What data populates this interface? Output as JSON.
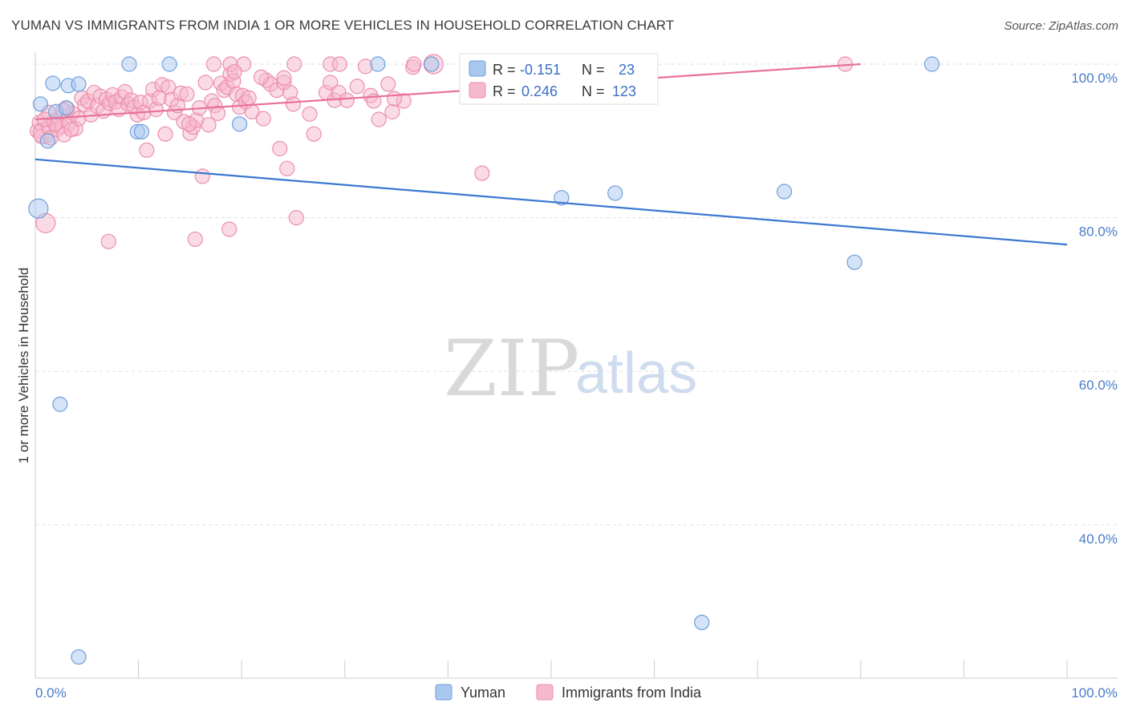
{
  "title": "YUMAN VS IMMIGRANTS FROM INDIA 1 OR MORE VEHICLES IN HOUSEHOLD CORRELATION CHART",
  "source": "Source: ZipAtlas.com",
  "watermark": {
    "zip": "ZIP",
    "atlas": "atlas"
  },
  "legend": {
    "r_label": "R =",
    "n_label": "N =",
    "yuman": {
      "r": "-0.151",
      "n": "23"
    },
    "india": {
      "r": "0.246",
      "n": "123"
    }
  },
  "bottom_legend": {
    "yuman": "Yuman",
    "india": "Immigrants from India"
  },
  "colors": {
    "yuman_fill": "#aac7ef",
    "yuman_stroke": "#6e9fdc",
    "yuman_line": "#3a78d0",
    "india_fill": "#f6b8cb",
    "india_stroke": "#ec8fab",
    "india_line": "#e8709a",
    "tick_text": "#4a7cc7",
    "grid": "#dddddd"
  },
  "chart_data": {
    "type": "scatter",
    "ylabel": "1 or more Vehicles in Household",
    "xlim": [
      0,
      100
    ],
    "ylim": [
      20,
      102
    ],
    "x_tick_labels": {
      "left": "0.0%",
      "right": "100.0%"
    },
    "y_ticks": [
      {
        "value": 100,
        "label": "100.0%"
      },
      {
        "value": 80,
        "label": "80.0%"
      },
      {
        "value": 60,
        "label": "60.0%"
      },
      {
        "value": 40,
        "label": "40.0%"
      }
    ],
    "grid": true,
    "series": [
      {
        "name": "Yuman",
        "trend": {
          "x": [
            0,
            100
          ],
          "y": [
            87.6,
            76.5
          ]
        },
        "points": [
          {
            "x": 0.3,
            "y": 81.2,
            "r": 12
          },
          {
            "x": 0.5,
            "y": 94.8
          },
          {
            "x": 1.2,
            "y": 90.0
          },
          {
            "x": 1.7,
            "y": 97.5
          },
          {
            "x": 2.0,
            "y": 93.8
          },
          {
            "x": 2.4,
            "y": 55.7
          },
          {
            "x": 3.0,
            "y": 94.3
          },
          {
            "x": 3.2,
            "y": 97.2
          },
          {
            "x": 4.2,
            "y": 97.4
          },
          {
            "x": 4.2,
            "y": 22.8
          },
          {
            "x": 9.1,
            "y": 100.0
          },
          {
            "x": 9.9,
            "y": 91.2
          },
          {
            "x": 10.3,
            "y": 91.2
          },
          {
            "x": 13.0,
            "y": 100.0
          },
          {
            "x": 19.8,
            "y": 92.2
          },
          {
            "x": 33.2,
            "y": 100.0
          },
          {
            "x": 38.4,
            "y": 100.0
          },
          {
            "x": 51.0,
            "y": 82.6
          },
          {
            "x": 56.2,
            "y": 83.2
          },
          {
            "x": 64.6,
            "y": 27.3
          },
          {
            "x": 72.6,
            "y": 83.4
          },
          {
            "x": 79.4,
            "y": 74.2
          },
          {
            "x": 86.9,
            "y": 100.0
          }
        ]
      },
      {
        "name": "Immigrants from India",
        "trend": {
          "x": [
            0,
            80
          ],
          "y": [
            92.8,
            100.0
          ]
        },
        "points": [
          {
            "x": 0.2,
            "y": 91.3
          },
          {
            "x": 0.4,
            "y": 92.4
          },
          {
            "x": 0.6,
            "y": 90.6
          },
          {
            "x": 0.8,
            "y": 91.0,
            "r": 13
          },
          {
            "x": 1.0,
            "y": 79.3,
            "r": 12
          },
          {
            "x": 1.3,
            "y": 91.8
          },
          {
            "x": 1.5,
            "y": 90.4
          },
          {
            "x": 1.8,
            "y": 92.6
          },
          {
            "x": 2.1,
            "y": 91.5
          },
          {
            "x": 2.3,
            "y": 93.0
          },
          {
            "x": 2.6,
            "y": 91.9
          },
          {
            "x": 2.8,
            "y": 90.8
          },
          {
            "x": 3.1,
            "y": 94.2
          },
          {
            "x": 3.3,
            "y": 92.3
          },
          {
            "x": 3.6,
            "y": 93.6
          },
          {
            "x": 3.9,
            "y": 91.6
          },
          {
            "x": 4.2,
            "y": 92.9
          },
          {
            "x": 4.5,
            "y": 95.6
          },
          {
            "x": 4.8,
            "y": 94.7
          },
          {
            "x": 5.1,
            "y": 95.2
          },
          {
            "x": 5.4,
            "y": 93.4
          },
          {
            "x": 5.7,
            "y": 96.3
          },
          {
            "x": 6.0,
            "y": 94.5
          },
          {
            "x": 6.3,
            "y": 95.8
          },
          {
            "x": 6.6,
            "y": 93.9
          },
          {
            "x": 6.9,
            "y": 95.4
          },
          {
            "x": 7.2,
            "y": 94.9
          },
          {
            "x": 7.5,
            "y": 96.0
          },
          {
            "x": 7.8,
            "y": 95.1
          },
          {
            "x": 8.1,
            "y": 94.1
          },
          {
            "x": 8.4,
            "y": 95.7
          },
          {
            "x": 8.7,
            "y": 96.4
          },
          {
            "x": 9.0,
            "y": 94.8
          },
          {
            "x": 9.3,
            "y": 95.3
          },
          {
            "x": 9.6,
            "y": 94.4
          },
          {
            "x": 9.9,
            "y": 93.4
          },
          {
            "x": 10.2,
            "y": 95.0
          },
          {
            "x": 10.5,
            "y": 93.7
          },
          {
            "x": 10.8,
            "y": 88.8
          },
          {
            "x": 11.1,
            "y": 95.2
          },
          {
            "x": 11.4,
            "y": 96.7
          },
          {
            "x": 11.7,
            "y": 94.1
          },
          {
            "x": 12.0,
            "y": 95.6
          },
          {
            "x": 12.3,
            "y": 97.3
          },
          {
            "x": 12.6,
            "y": 90.9
          },
          {
            "x": 12.9,
            "y": 97.0
          },
          {
            "x": 13.2,
            "y": 95.4
          },
          {
            "x": 13.5,
            "y": 93.7
          },
          {
            "x": 13.8,
            "y": 94.6
          },
          {
            "x": 14.1,
            "y": 96.2
          },
          {
            "x": 14.4,
            "y": 92.5
          },
          {
            "x": 14.7,
            "y": 96.1
          },
          {
            "x": 15.0,
            "y": 91.0
          },
          {
            "x": 15.3,
            "y": 91.8
          },
          {
            "x": 15.6,
            "y": 92.7
          },
          {
            "x": 15.9,
            "y": 94.3
          },
          {
            "x": 16.2,
            "y": 85.4
          },
          {
            "x": 16.5,
            "y": 97.6
          },
          {
            "x": 16.8,
            "y": 92.1
          },
          {
            "x": 17.1,
            "y": 95.2
          },
          {
            "x": 17.4,
            "y": 94.6
          },
          {
            "x": 17.7,
            "y": 93.6
          },
          {
            "x": 18.0,
            "y": 97.5
          },
          {
            "x": 18.3,
            "y": 96.6
          },
          {
            "x": 18.6,
            "y": 97.0
          },
          {
            "x": 18.9,
            "y": 98.7
          },
          {
            "x": 19.2,
            "y": 97.8
          },
          {
            "x": 19.5,
            "y": 96.1
          },
          {
            "x": 19.8,
            "y": 94.4
          },
          {
            "x": 20.1,
            "y": 95.9
          },
          {
            "x": 20.4,
            "y": 95.1
          },
          {
            "x": 20.7,
            "y": 95.6
          },
          {
            "x": 21.0,
            "y": 93.8
          },
          {
            "x": 22.1,
            "y": 92.9
          },
          {
            "x": 22.4,
            "y": 97.9
          },
          {
            "x": 22.8,
            "y": 97.4
          },
          {
            "x": 23.4,
            "y": 96.6
          },
          {
            "x": 23.7,
            "y": 89.0
          },
          {
            "x": 24.1,
            "y": 97.6
          },
          {
            "x": 24.4,
            "y": 86.4
          },
          {
            "x": 24.7,
            "y": 96.3
          },
          {
            "x": 25.0,
            "y": 94.8
          },
          {
            "x": 25.3,
            "y": 80.0
          },
          {
            "x": 26.6,
            "y": 93.5
          },
          {
            "x": 27.0,
            "y": 90.9
          },
          {
            "x": 28.2,
            "y": 96.3
          },
          {
            "x": 28.6,
            "y": 97.6
          },
          {
            "x": 29.0,
            "y": 95.3
          },
          {
            "x": 31.2,
            "y": 97.1
          },
          {
            "x": 32.5,
            "y": 95.9
          },
          {
            "x": 32.8,
            "y": 95.2
          },
          {
            "x": 33.3,
            "y": 92.8
          },
          {
            "x": 34.2,
            "y": 97.4
          },
          {
            "x": 34.6,
            "y": 93.8
          },
          {
            "x": 35.7,
            "y": 95.2
          },
          {
            "x": 36.6,
            "y": 99.6
          },
          {
            "x": 43.3,
            "y": 85.8
          },
          {
            "x": 7.1,
            "y": 76.9
          },
          {
            "x": 15.5,
            "y": 77.2
          },
          {
            "x": 18.8,
            "y": 78.5
          },
          {
            "x": 17.3,
            "y": 100.0
          },
          {
            "x": 18.9,
            "y": 100.0
          },
          {
            "x": 20.2,
            "y": 100.0
          },
          {
            "x": 25.1,
            "y": 100.0
          },
          {
            "x": 28.6,
            "y": 100.0
          },
          {
            "x": 29.5,
            "y": 100.0
          },
          {
            "x": 32.0,
            "y": 99.7
          },
          {
            "x": 36.7,
            "y": 100.0
          },
          {
            "x": 38.6,
            "y": 100.0,
            "r": 12
          },
          {
            "x": 78.5,
            "y": 100.0
          },
          {
            "x": 19.3,
            "y": 99.0
          },
          {
            "x": 21.9,
            "y": 98.3
          },
          {
            "x": 24.1,
            "y": 98.2
          },
          {
            "x": 29.4,
            "y": 96.3
          },
          {
            "x": 30.2,
            "y": 95.3
          },
          {
            "x": 34.8,
            "y": 95.5
          },
          {
            "x": 1.3,
            "y": 93.7
          },
          {
            "x": 1.9,
            "y": 92.2
          },
          {
            "x": 2.7,
            "y": 94.0
          },
          {
            "x": 3.5,
            "y": 91.5
          },
          {
            "x": 0.9,
            "y": 92.8
          },
          {
            "x": 14.9,
            "y": 92.2
          }
        ]
      }
    ]
  }
}
